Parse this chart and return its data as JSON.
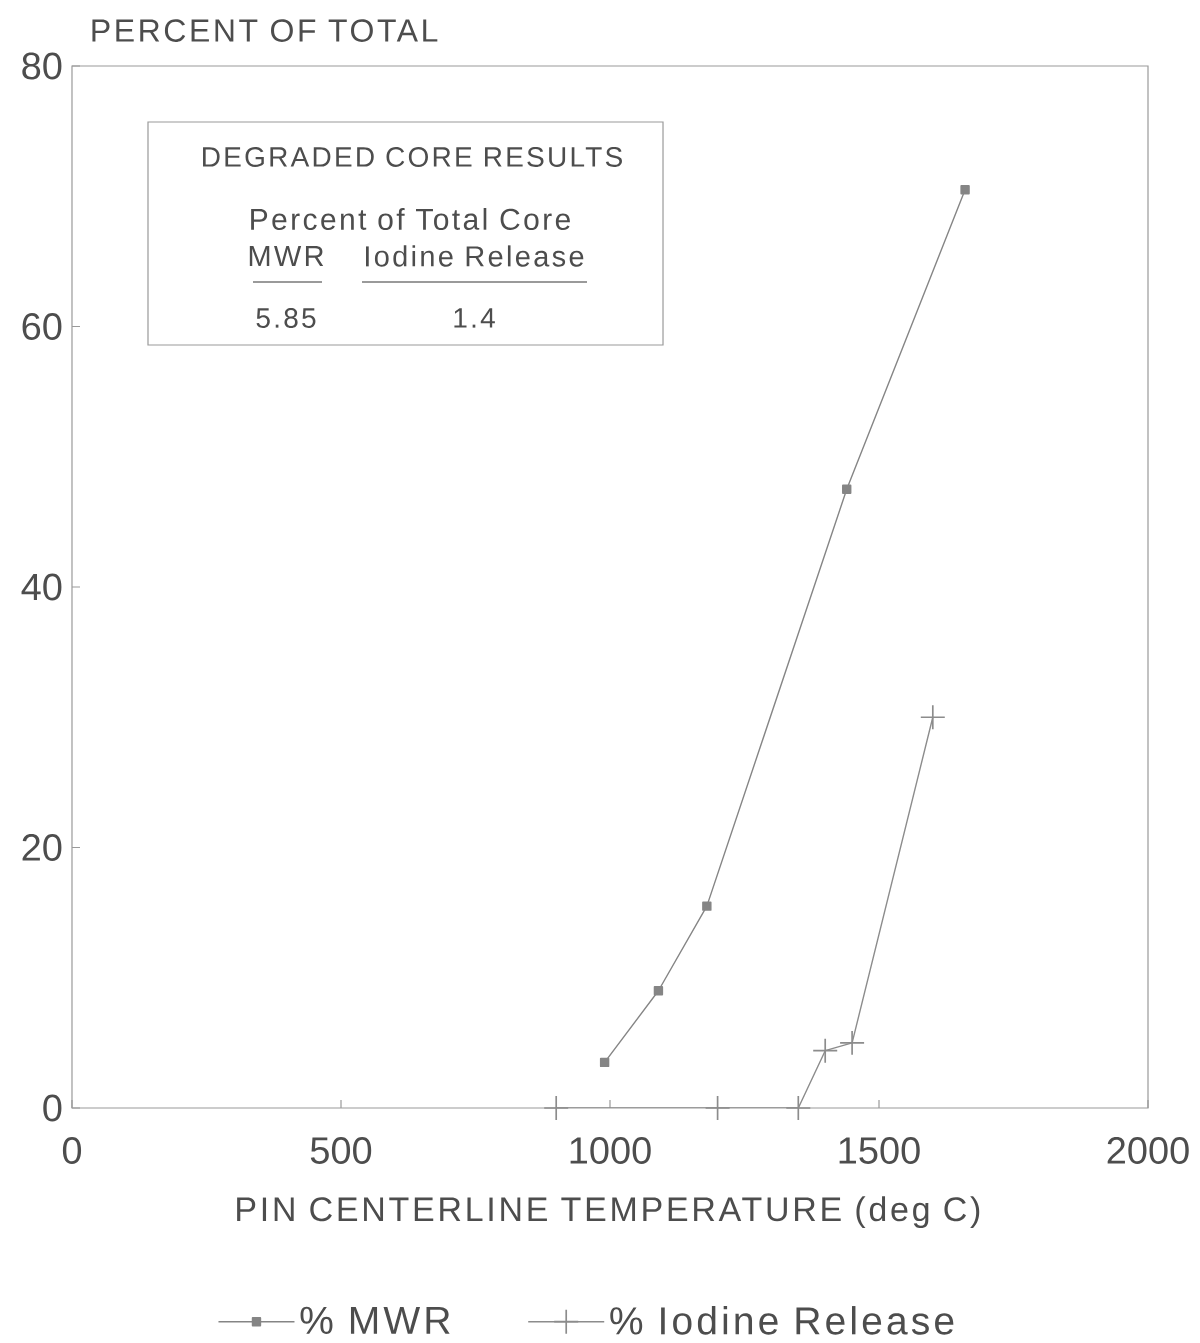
{
  "chart_data": {
    "type": "line",
    "xlabel": "PIN CENTERLINE TEMPERATURE (deg C)",
    "ylabel": "PERCENT OF TOTAL",
    "annotations": [
      "DEGRADED CORE RESULTS",
      "Percent of Total Core",
      "MWR",
      "Iodine Release",
      "5.85",
      "1.4"
    ],
    "series": [
      {
        "name": "% MWR",
        "color": "#858585",
        "marker": "square",
        "x": [
          990,
          1090,
          1180,
          1440,
          1660
        ],
        "values": [
          3.5,
          9,
          15.5,
          47.5,
          70.5
        ]
      },
      {
        "name": "% Iodine Release",
        "color": "#8c8c8c",
        "marker": "cross",
        "x": [
          900,
          1200,
          1350,
          1400,
          1450,
          1600
        ],
        "values": [
          0,
          0,
          0,
          4.4,
          5,
          30
        ]
      }
    ],
    "xlim": [
      0,
      2000
    ],
    "ylim": [
      0,
      80
    ],
    "xticks": [
      0,
      500,
      1000,
      1500,
      2000
    ],
    "yticks": [
      0,
      20,
      40,
      60,
      80
    ],
    "legend": "bottom",
    "line_style": "solid"
  }
}
